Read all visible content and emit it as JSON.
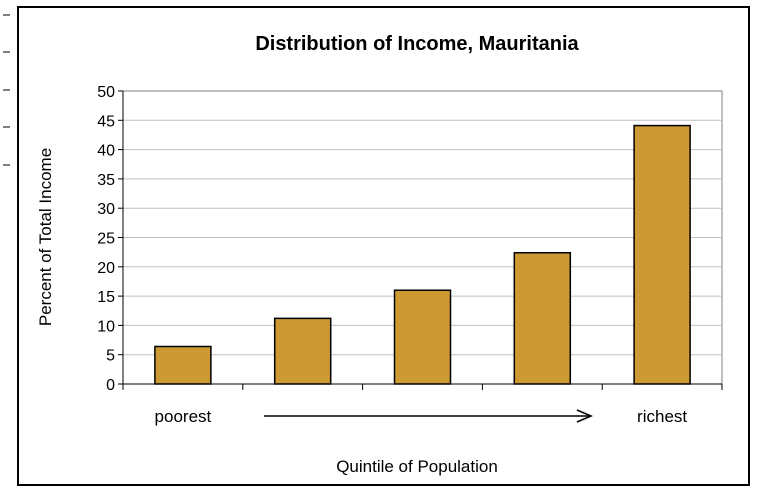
{
  "chart_data": {
    "type": "bar",
    "title": "Distribution of Income, Mauritania",
    "ylabel": "Percent of Total Income",
    "xlabel": "Quintile of Population",
    "ylim": [
      0,
      50
    ],
    "yticks": [
      0,
      5,
      10,
      15,
      20,
      25,
      30,
      35,
      40,
      45,
      50
    ],
    "gridlines": "horizontal",
    "categories": [
      "poorest",
      "",
      "",
      "",
      "richest"
    ],
    "values": [
      6.4,
      11.2,
      16.0,
      22.4,
      44.1
    ],
    "bar_color": "#CC9933",
    "plot_border_color": "#808080",
    "gridline_color": "#C0C0C0"
  }
}
